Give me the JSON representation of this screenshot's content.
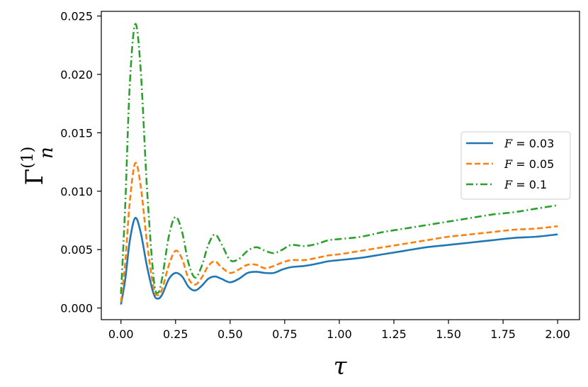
{
  "chart_data": {
    "type": "line",
    "title": "",
    "xlabel": "τ",
    "ylabel": {
      "main": "Γ",
      "sub": "n",
      "sup": "(1)"
    },
    "xlim": [
      -0.09,
      2.1
    ],
    "ylim": [
      -0.001,
      0.0254
    ],
    "xticks": [
      0.0,
      0.25,
      0.5,
      0.75,
      1.0,
      1.25,
      1.5,
      1.75,
      2.0
    ],
    "xtick_labels": [
      "0.00",
      "0.25",
      "0.50",
      "0.75",
      "1.00",
      "1.25",
      "1.50",
      "1.75",
      "2.00"
    ],
    "yticks": [
      0.0,
      0.005,
      0.01,
      0.015,
      0.02,
      0.025
    ],
    "ytick_labels": [
      "0.000",
      "0.005",
      "0.010",
      "0.015",
      "0.020",
      "0.025"
    ],
    "grid": false,
    "legend_position": "center-right",
    "series": [
      {
        "name": "F = 0.03",
        "legend_label": {
          "var": "F",
          "rest": " = 0.03"
        },
        "color": "#1f77b4",
        "dash": "solid",
        "points": [
          [
            0.0,
            0.0003
          ],
          [
            0.02,
            0.0025
          ],
          [
            0.04,
            0.0057
          ],
          [
            0.065,
            0.0077
          ],
          [
            0.09,
            0.0065
          ],
          [
            0.12,
            0.0035
          ],
          [
            0.15,
            0.0012
          ],
          [
            0.17,
            0.0008
          ],
          [
            0.19,
            0.0012
          ],
          [
            0.22,
            0.0025
          ],
          [
            0.25,
            0.003
          ],
          [
            0.28,
            0.0027
          ],
          [
            0.31,
            0.0018
          ],
          [
            0.34,
            0.0015
          ],
          [
            0.37,
            0.0019
          ],
          [
            0.4,
            0.0025
          ],
          [
            0.43,
            0.0027
          ],
          [
            0.46,
            0.0025
          ],
          [
            0.5,
            0.0022
          ],
          [
            0.54,
            0.0025
          ],
          [
            0.58,
            0.003
          ],
          [
            0.62,
            0.0031
          ],
          [
            0.66,
            0.003
          ],
          [
            0.7,
            0.003
          ],
          [
            0.74,
            0.0033
          ],
          [
            0.78,
            0.0035
          ],
          [
            0.84,
            0.0036
          ],
          [
            0.9,
            0.0038
          ],
          [
            0.95,
            0.004
          ],
          [
            1.0,
            0.0041
          ],
          [
            1.1,
            0.0043
          ],
          [
            1.2,
            0.0046
          ],
          [
            1.3,
            0.0049
          ],
          [
            1.4,
            0.0052
          ],
          [
            1.5,
            0.0054
          ],
          [
            1.6,
            0.0056
          ],
          [
            1.7,
            0.0058
          ],
          [
            1.8,
            0.006
          ],
          [
            1.9,
            0.0061
          ],
          [
            2.0,
            0.0063
          ]
        ]
      },
      {
        "name": "F = 0.05",
        "legend_label": {
          "var": "F",
          "rest": " = 0.05"
        },
        "color": "#ff7f0e",
        "dash": "dashed",
        "points": [
          [
            0.0,
            0.0005
          ],
          [
            0.02,
            0.004
          ],
          [
            0.04,
            0.009
          ],
          [
            0.065,
            0.0124
          ],
          [
            0.09,
            0.0105
          ],
          [
            0.12,
            0.0055
          ],
          [
            0.15,
            0.0017
          ],
          [
            0.17,
            0.0011
          ],
          [
            0.19,
            0.0017
          ],
          [
            0.22,
            0.0037
          ],
          [
            0.25,
            0.0049
          ],
          [
            0.28,
            0.0042
          ],
          [
            0.31,
            0.0025
          ],
          [
            0.34,
            0.002
          ],
          [
            0.37,
            0.0026
          ],
          [
            0.4,
            0.0036
          ],
          [
            0.43,
            0.004
          ],
          [
            0.46,
            0.0035
          ],
          [
            0.5,
            0.003
          ],
          [
            0.54,
            0.0033
          ],
          [
            0.58,
            0.0037
          ],
          [
            0.62,
            0.0037
          ],
          [
            0.66,
            0.0034
          ],
          [
            0.7,
            0.0036
          ],
          [
            0.74,
            0.0039
          ],
          [
            0.78,
            0.0041
          ],
          [
            0.84,
            0.0041
          ],
          [
            0.9,
            0.0043
          ],
          [
            0.95,
            0.0045
          ],
          [
            1.0,
            0.0046
          ],
          [
            1.1,
            0.0049
          ],
          [
            1.2,
            0.0052
          ],
          [
            1.3,
            0.0055
          ],
          [
            1.4,
            0.0058
          ],
          [
            1.5,
            0.0061
          ],
          [
            1.6,
            0.0063
          ],
          [
            1.7,
            0.0065
          ],
          [
            1.8,
            0.0067
          ],
          [
            1.9,
            0.0068
          ],
          [
            2.0,
            0.007
          ]
        ]
      },
      {
        "name": "F = 0.1",
        "legend_label": {
          "var": "F",
          "rest": " = 0.1"
        },
        "color": "#2ca02c",
        "dash": "dashdot",
        "points": [
          [
            0.0,
            0.0012
          ],
          [
            0.02,
            0.009
          ],
          [
            0.04,
            0.019
          ],
          [
            0.065,
            0.0243
          ],
          [
            0.09,
            0.0205
          ],
          [
            0.12,
            0.01
          ],
          [
            0.15,
            0.0025
          ],
          [
            0.17,
            0.0013
          ],
          [
            0.19,
            0.0027
          ],
          [
            0.22,
            0.0062
          ],
          [
            0.25,
            0.0078
          ],
          [
            0.28,
            0.0065
          ],
          [
            0.31,
            0.0038
          ],
          [
            0.34,
            0.0026
          ],
          [
            0.37,
            0.0036
          ],
          [
            0.4,
            0.0054
          ],
          [
            0.43,
            0.0063
          ],
          [
            0.46,
            0.0055
          ],
          [
            0.5,
            0.0041
          ],
          [
            0.54,
            0.0042
          ],
          [
            0.58,
            0.0049
          ],
          [
            0.62,
            0.0052
          ],
          [
            0.66,
            0.0049
          ],
          [
            0.7,
            0.0047
          ],
          [
            0.74,
            0.005
          ],
          [
            0.78,
            0.0054
          ],
          [
            0.84,
            0.0053
          ],
          [
            0.9,
            0.0055
          ],
          [
            0.95,
            0.0058
          ],
          [
            1.0,
            0.0059
          ],
          [
            1.1,
            0.0061
          ],
          [
            1.2,
            0.0065
          ],
          [
            1.3,
            0.0068
          ],
          [
            1.4,
            0.0071
          ],
          [
            1.5,
            0.0074
          ],
          [
            1.6,
            0.0077
          ],
          [
            1.7,
            0.008
          ],
          [
            1.8,
            0.0082
          ],
          [
            1.9,
            0.0085
          ],
          [
            2.0,
            0.0088
          ]
        ]
      }
    ]
  }
}
